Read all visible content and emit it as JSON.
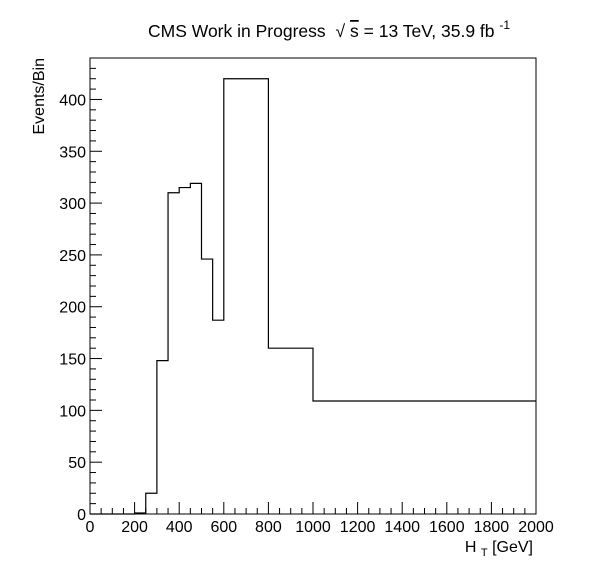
{
  "chart_data": {
    "type": "histogram",
    "title": {
      "prefix": "CMS Work in Progress",
      "sqrt_symbol": "√",
      "sqrt_arg": "s",
      "rest": " = 13 TeV, 35.9 fb",
      "superscript": "-1"
    },
    "xlabel": {
      "base": "H",
      "subscript": "T",
      "rest": " [GeV]"
    },
    "ylabel": "Events/Bin",
    "xlim": [
      0,
      2000
    ],
    "ylim": [
      0,
      440
    ],
    "x_major_ticks": [
      0,
      200,
      400,
      600,
      800,
      1000,
      1200,
      1400,
      1600,
      1800,
      2000
    ],
    "x_minor_step": 50,
    "y_major_ticks": [
      0,
      50,
      100,
      150,
      200,
      250,
      300,
      350,
      400
    ],
    "y_minor_step": 10,
    "bins": [
      {
        "low": 0,
        "high": 200,
        "value": 0
      },
      {
        "low": 200,
        "high": 250,
        "value": 1
      },
      {
        "low": 250,
        "high": 300,
        "value": 20
      },
      {
        "low": 300,
        "high": 350,
        "value": 148
      },
      {
        "low": 350,
        "high": 400,
        "value": 310
      },
      {
        "low": 400,
        "high": 450,
        "value": 315
      },
      {
        "low": 450,
        "high": 500,
        "value": 319
      },
      {
        "low": 500,
        "high": 550,
        "value": 246
      },
      {
        "low": 550,
        "high": 600,
        "value": 187
      },
      {
        "low": 600,
        "high": 800,
        "value": 420
      },
      {
        "low": 800,
        "high": 1000,
        "value": 160
      },
      {
        "low": 1000,
        "high": 2000,
        "value": 109
      }
    ],
    "line_color": "#000000",
    "grid": false
  }
}
